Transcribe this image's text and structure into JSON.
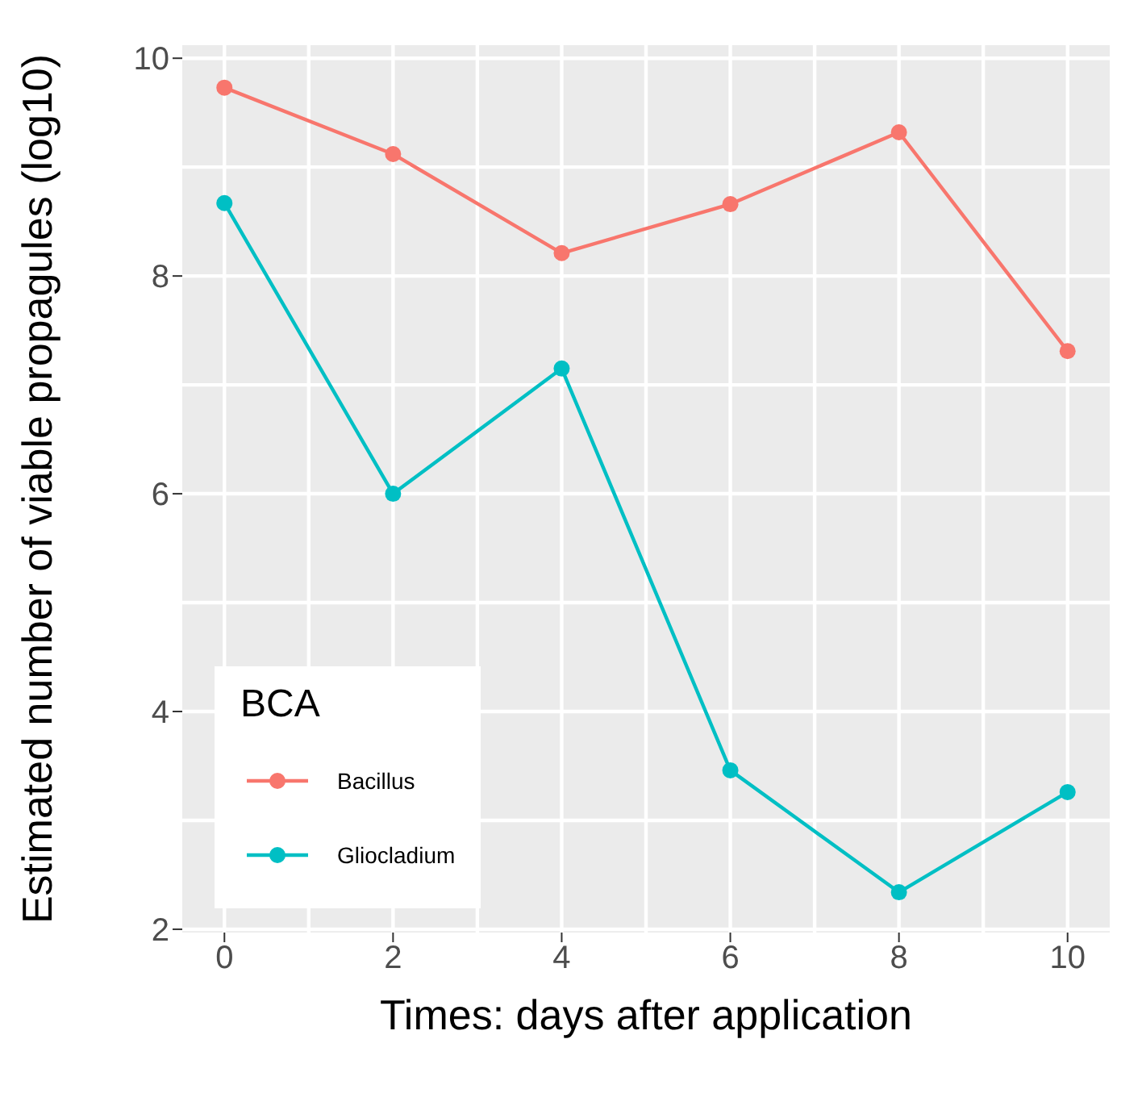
{
  "chart_data": {
    "type": "line",
    "xlabel": "Times: days after application",
    "ylabel": "Estimated number of viable propagules (log10)",
    "legend_title": "BCA",
    "x": [
      0,
      2,
      4,
      6,
      8,
      10
    ],
    "series": [
      {
        "name": "Bacillus",
        "color": "#f8766d",
        "values": [
          9.73,
          9.12,
          8.21,
          8.66,
          9.32,
          7.31
        ]
      },
      {
        "name": "Gliocladium",
        "color": "#00bfc4",
        "values": [
          8.67,
          6.0,
          7.15,
          3.46,
          2.34,
          3.26
        ]
      }
    ],
    "xlim": [
      -0.5,
      10.5
    ],
    "xticks": [
      0,
      2,
      4,
      6,
      8,
      10
    ],
    "ylim": [
      1.97,
      10.12
    ],
    "yticks": [
      2,
      4,
      6,
      8,
      10
    ],
    "grid": true,
    "legend": "bottom left",
    "marker": "circle",
    "line_style": "solid"
  }
}
